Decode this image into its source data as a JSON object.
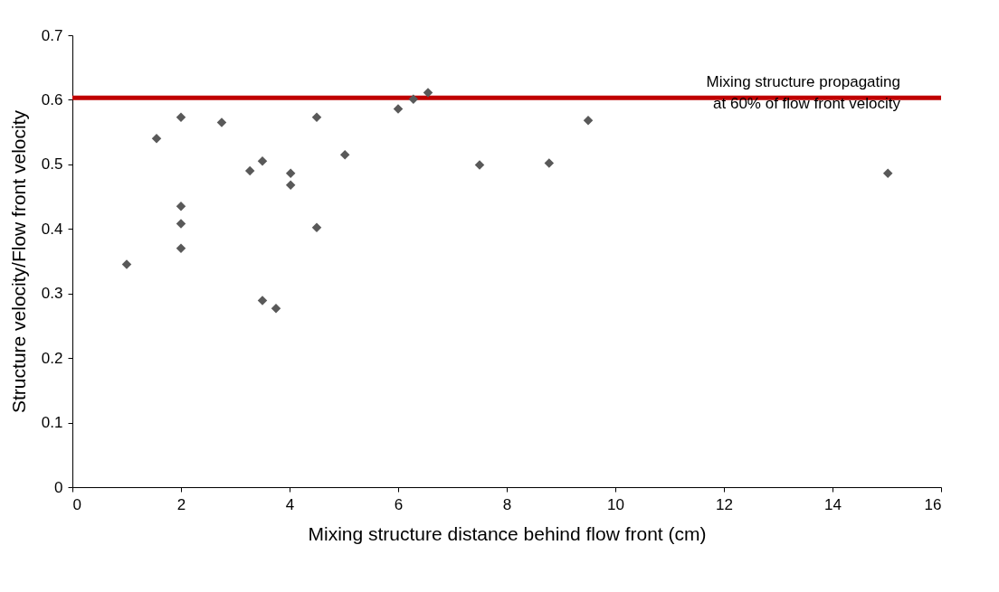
{
  "chart_data": {
    "type": "scatter",
    "xlabel": "Mixing structure distance behind flow front (cm)",
    "ylabel": "Structure velocity/Flow front velocity",
    "x": [
      1.0,
      1.55,
      2.0,
      2.0,
      2.0,
      2.0,
      2.75,
      3.27,
      3.5,
      3.5,
      3.75,
      4.02,
      4.02,
      4.5,
      4.5,
      5.02,
      6.0,
      6.28,
      6.55,
      7.5,
      8.78,
      9.5,
      15.02
    ],
    "series": [
      {
        "color": "#595959",
        "values": [
          0.345,
          0.54,
          0.573,
          0.435,
          0.408,
          0.37,
          0.565,
          0.49,
          0.505,
          0.289,
          0.277,
          0.486,
          0.468,
          0.573,
          0.402,
          0.515,
          0.586,
          0.601,
          0.611,
          0.499,
          0.502,
          0.568,
          0.486
        ]
      }
    ],
    "xlim": [
      0,
      16
    ],
    "xticks": [
      0,
      2,
      4,
      6,
      8,
      10,
      12,
      14,
      16
    ],
    "ylim": [
      0,
      0.7
    ],
    "yticks": [
      0,
      0.1,
      0.2,
      0.3,
      0.4,
      0.5,
      0.6,
      0.7
    ],
    "ref_lines": [
      {
        "axis": "y",
        "value": 0.603,
        "label": "Mixing structure propagating at 60% of flow front velocity",
        "color": "#c00000",
        "line_style": "solid"
      }
    ],
    "marker": "diamond",
    "grid": false
  }
}
